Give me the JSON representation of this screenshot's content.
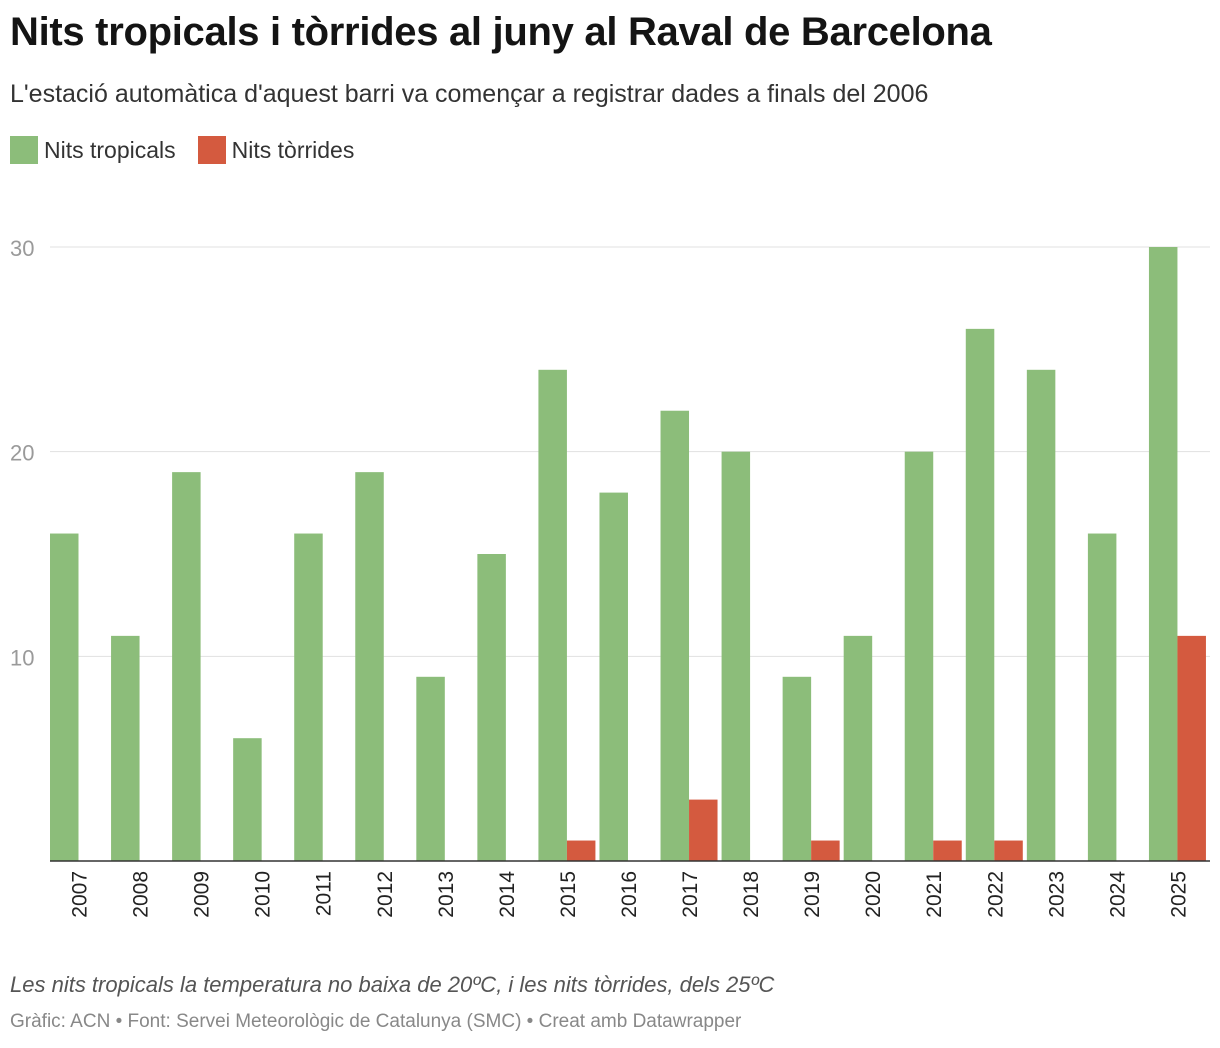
{
  "chart_data": {
    "type": "bar",
    "title": "Nits tropicals i tòrrides al juny al Raval de Barcelona",
    "subtitle": "L'estació automàtica d'aquest barri va començar a registrar dades a finals del 2006",
    "categories": [
      "2007",
      "2008",
      "2009",
      "2010",
      "2011",
      "2012",
      "2013",
      "2014",
      "2015",
      "2016",
      "2017",
      "2018",
      "2019",
      "2020",
      "2021",
      "2022",
      "2023",
      "2024",
      "2025"
    ],
    "series": [
      {
        "name": "Nits tropicals",
        "color": "#8cbd7a",
        "values": [
          16,
          11,
          19,
          6,
          16,
          19,
          9,
          15,
          24,
          18,
          22,
          20,
          9,
          11,
          20,
          26,
          24,
          16,
          30
        ]
      },
      {
        "name": "Nits tòrrides",
        "color": "#d45a3f",
        "values": [
          0,
          0,
          0,
          0,
          0,
          0,
          0,
          0,
          1,
          0,
          3,
          0,
          1,
          0,
          1,
          1,
          0,
          0,
          11
        ]
      }
    ],
    "ylim": [
      0,
      30
    ],
    "yticks": [
      "10",
      "20",
      "30"
    ],
    "grid": true,
    "legend": "top-left"
  },
  "note": "Les nits tropicals la temperatura no baixa de 20ºC, i les nits tòrrides, dels 25ºC",
  "source": "Gràfic: ACN • Font: Servei Meteorològic de Catalunya (SMC) • Creat amb Datawrapper"
}
